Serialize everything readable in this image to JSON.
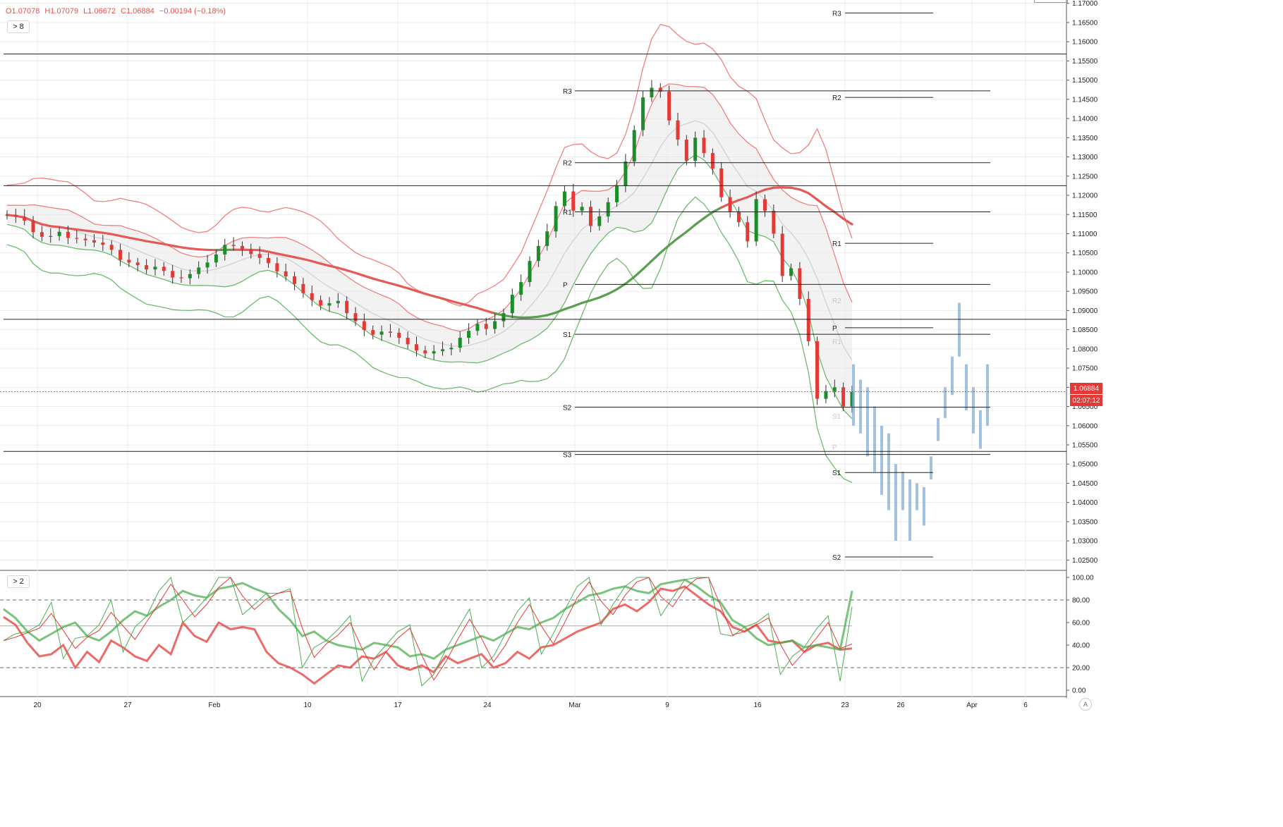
{
  "ohlc": {
    "o": "O1.07078",
    "h": "H1.07079",
    "l": "L1.06672",
    "c": "C1.06884",
    "chg": "−0.00194 (−0.18%)"
  },
  "legend": {
    "main": "> 8",
    "osc": "> 2"
  },
  "price_tag": {
    "price": "1.06884",
    "countdown": "02:07:12"
  },
  "tz_button": "A",
  "colors": {
    "up": "#1b8e2a",
    "down": "#e53935",
    "red_band": "#f08080",
    "green_band": "#6dbb6d",
    "forecast": "#7aa8d4",
    "grid": "#ececec",
    "axis": "#333333"
  },
  "chart_data": [
    {
      "type": "candlestick",
      "ylim": [
        1.0225,
        1.1705
      ],
      "yticks": [
        "1.17000",
        "1.16500",
        "1.16000",
        "1.15500",
        "1.15000",
        "1.14500",
        "1.14000",
        "1.13500",
        "1.13000",
        "1.12500",
        "1.12000",
        "1.11500",
        "1.11000",
        "1.10500",
        "1.10000",
        "1.09500",
        "1.09000",
        "1.08500",
        "1.08000",
        "1.07500",
        "1.07000",
        "1.06500",
        "1.06000",
        "1.05500",
        "1.05000",
        "1.04500",
        "1.04000",
        "1.03500",
        "1.03000",
        "1.02500"
      ],
      "xticks": [
        "20",
        "27",
        "Feb",
        "10",
        "17",
        "24",
        "Mar",
        "9",
        "16",
        "23",
        "26",
        "Apr",
        "6"
      ],
      "horizontal_levels": [
        1.1568,
        1.1225,
        1.0877,
        1.0533
      ],
      "last_price": 1.06884,
      "pivots": [
        {
          "label": "R3",
          "price": 1.1472,
          "side": "left"
        },
        {
          "label": "R2",
          "price": 1.1285,
          "side": "left"
        },
        {
          "label": "R1",
          "price": 1.1157,
          "side": "left"
        },
        {
          "label": "P",
          "price": 1.0968,
          "side": "left"
        },
        {
          "label": "S1",
          "price": 1.0838,
          "side": "left"
        },
        {
          "label": "S2",
          "price": 1.0648,
          "side": "left"
        },
        {
          "label": "S3",
          "price": 1.0525,
          "side": "left"
        },
        {
          "label": "R3",
          "price": 1.1675,
          "side": "right"
        },
        {
          "label": "R2",
          "price": 1.1455,
          "side": "right"
        },
        {
          "label": "R1",
          "price": 1.1075,
          "side": "right"
        },
        {
          "label": "P",
          "price": 1.0855,
          "side": "right"
        },
        {
          "label": "S1",
          "price": 1.0478,
          "side": "right"
        },
        {
          "label": "S2",
          "price": 1.0258,
          "side": "right"
        }
      ],
      "faded_pivots": [
        "R2",
        "R1",
        "S1",
        "P"
      ],
      "close_series": [
        1.1149,
        1.1144,
        1.1134,
        1.1104,
        1.1092,
        1.1094,
        1.1105,
        1.1089,
        1.1087,
        1.1083,
        1.1077,
        1.1071,
        1.1058,
        1.1032,
        1.1025,
        1.1018,
        1.1007,
        1.1014,
        1.1003,
        1.0986,
        1.0984,
        1.0995,
        1.1012,
        1.1025,
        1.1046,
        1.1071,
        1.1068,
        1.1058,
        1.1047,
        1.1037,
        1.1023,
        1.1002,
        1.0989,
        1.0969,
        1.0945,
        1.0927,
        1.0913,
        1.0919,
        1.0925,
        1.0893,
        1.0872,
        1.0849,
        1.0837,
        1.0845,
        1.0842,
        1.0829,
        1.0812,
        1.0796,
        1.0788,
        1.0794,
        1.0799,
        1.0803,
        1.0829,
        1.0847,
        1.0865,
        1.0852,
        1.0872,
        1.0893,
        1.0941,
        1.0974,
        1.1029,
        1.1068,
        1.1106,
        1.1172,
        1.121,
        1.116,
        1.117,
        1.112,
        1.1145,
        1.1182,
        1.1224,
        1.1288,
        1.137,
        1.1455,
        1.148,
        1.147,
        1.1395,
        1.1345,
        1.129,
        1.135,
        1.131,
        1.127,
        1.1195,
        1.1158,
        1.113,
        1.108,
        1.119,
        1.116,
        1.11,
        1.099,
        1.101,
        1.093,
        1.082,
        1.067,
        1.069,
        1.07,
        1.065,
        1.0688
      ],
      "forecast_bars": [
        [
          1.076,
          1.06
        ],
        [
          1.072,
          1.058
        ],
        [
          1.07,
          1.052
        ],
        [
          1.065,
          1.048
        ],
        [
          1.06,
          1.042
        ],
        [
          1.058,
          1.038
        ],
        [
          1.05,
          1.03
        ],
        [
          1.048,
          1.038
        ],
        [
          1.046,
          1.03
        ],
        [
          1.045,
          1.038
        ],
        [
          1.044,
          1.034
        ],
        [
          1.052,
          1.046
        ],
        [
          1.062,
          1.056
        ],
        [
          1.07,
          1.062
        ],
        [
          1.078,
          1.068
        ],
        [
          1.092,
          1.078
        ],
        [
          1.076,
          1.064
        ],
        [
          1.07,
          1.058
        ],
        [
          1.064,
          1.054
        ],
        [
          1.076,
          1.06
        ]
      ]
    },
    {
      "type": "line",
      "ylim": [
        -5,
        105
      ],
      "yticks": [
        "100.00",
        "80.00",
        "60.00",
        "40.00",
        "20.00",
        "0.00"
      ],
      "reference_lines": [
        80,
        57,
        20
      ],
      "series": [
        {
          "color": "#e53935",
          "values": [
            65,
            58,
            42,
            30,
            32,
            40,
            20,
            34,
            25,
            44,
            38,
            30,
            26,
            40,
            32,
            60,
            48,
            43,
            60,
            54,
            56,
            54,
            34,
            24,
            20,
            14,
            6,
            14,
            22,
            20,
            30,
            28,
            34,
            22,
            18,
            22,
            16,
            30,
            24,
            28,
            32,
            20,
            24,
            34,
            28,
            38,
            40,
            46,
            52,
            56,
            60,
            72,
            76,
            70,
            78,
            90,
            88,
            92,
            84,
            76,
            70,
            56,
            52,
            58,
            44,
            42,
            44,
            34,
            40,
            42,
            36,
            37
          ]
        },
        {
          "color": "#4caf50",
          "values": [
            72,
            64,
            52,
            44,
            50,
            56,
            60,
            48,
            44,
            52,
            62,
            70,
            66,
            74,
            80,
            88,
            84,
            82,
            90,
            92,
            95,
            90,
            86,
            72,
            62,
            48,
            52,
            44,
            40,
            38,
            36,
            42,
            40,
            38,
            30,
            32,
            28,
            36,
            40,
            44,
            48,
            44,
            50,
            56,
            54,
            60,
            64,
            72,
            78,
            84,
            86,
            90,
            92,
            88,
            86,
            94,
            96,
            98,
            92,
            84,
            78,
            62,
            56,
            46,
            40,
            42,
            44,
            38,
            40,
            38,
            36,
            88
          ]
        }
      ]
    }
  ]
}
